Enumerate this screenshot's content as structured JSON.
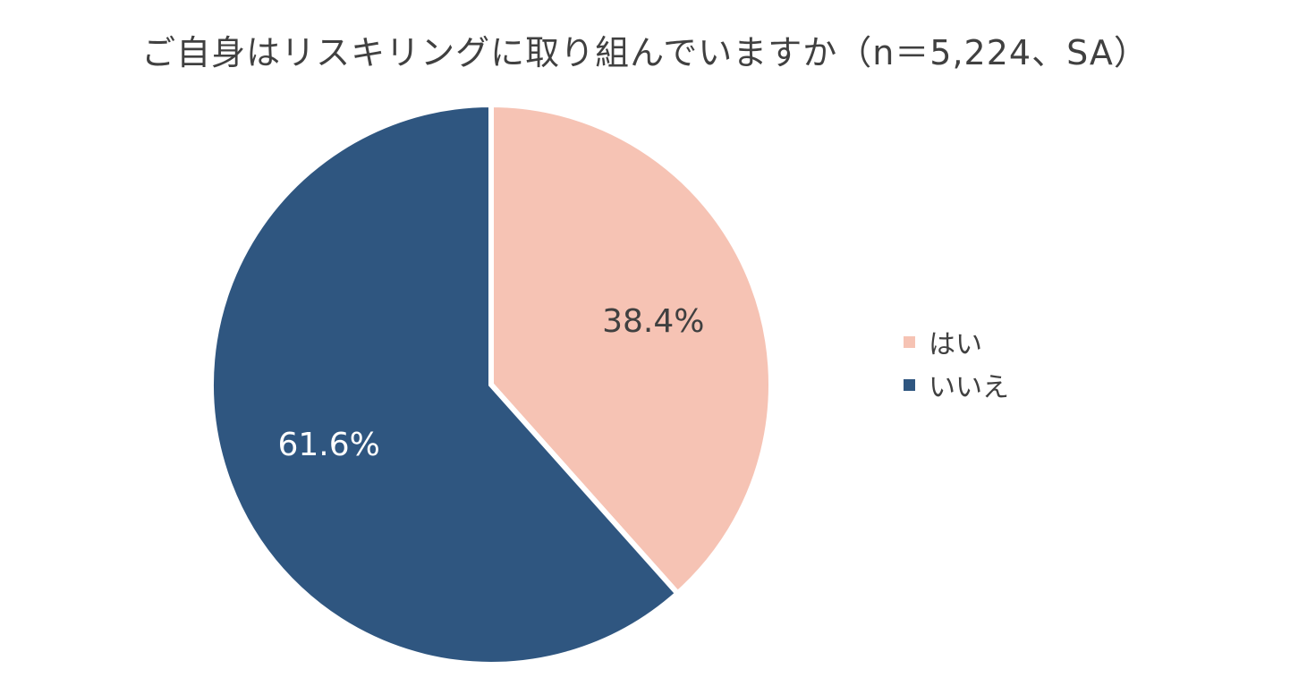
{
  "chart_data": {
    "type": "pie",
    "title": "ご自身はリスキリングに取り組んでいますか（n＝5,224、SA）",
    "categories": [
      "はい",
      "いいえ"
    ],
    "values": [
      38.4,
      61.6
    ],
    "data_labels": [
      "38.4%",
      "61.6%"
    ],
    "colors": [
      "#F6C3B4",
      "#2F5680"
    ],
    "label_colors": [
      "#404040",
      "#ffffff"
    ],
    "start_angle": "12 o'clock",
    "direction": "clockwise",
    "legend": "right",
    "legend_entries": [
      "はい",
      "いいえ"
    ]
  }
}
